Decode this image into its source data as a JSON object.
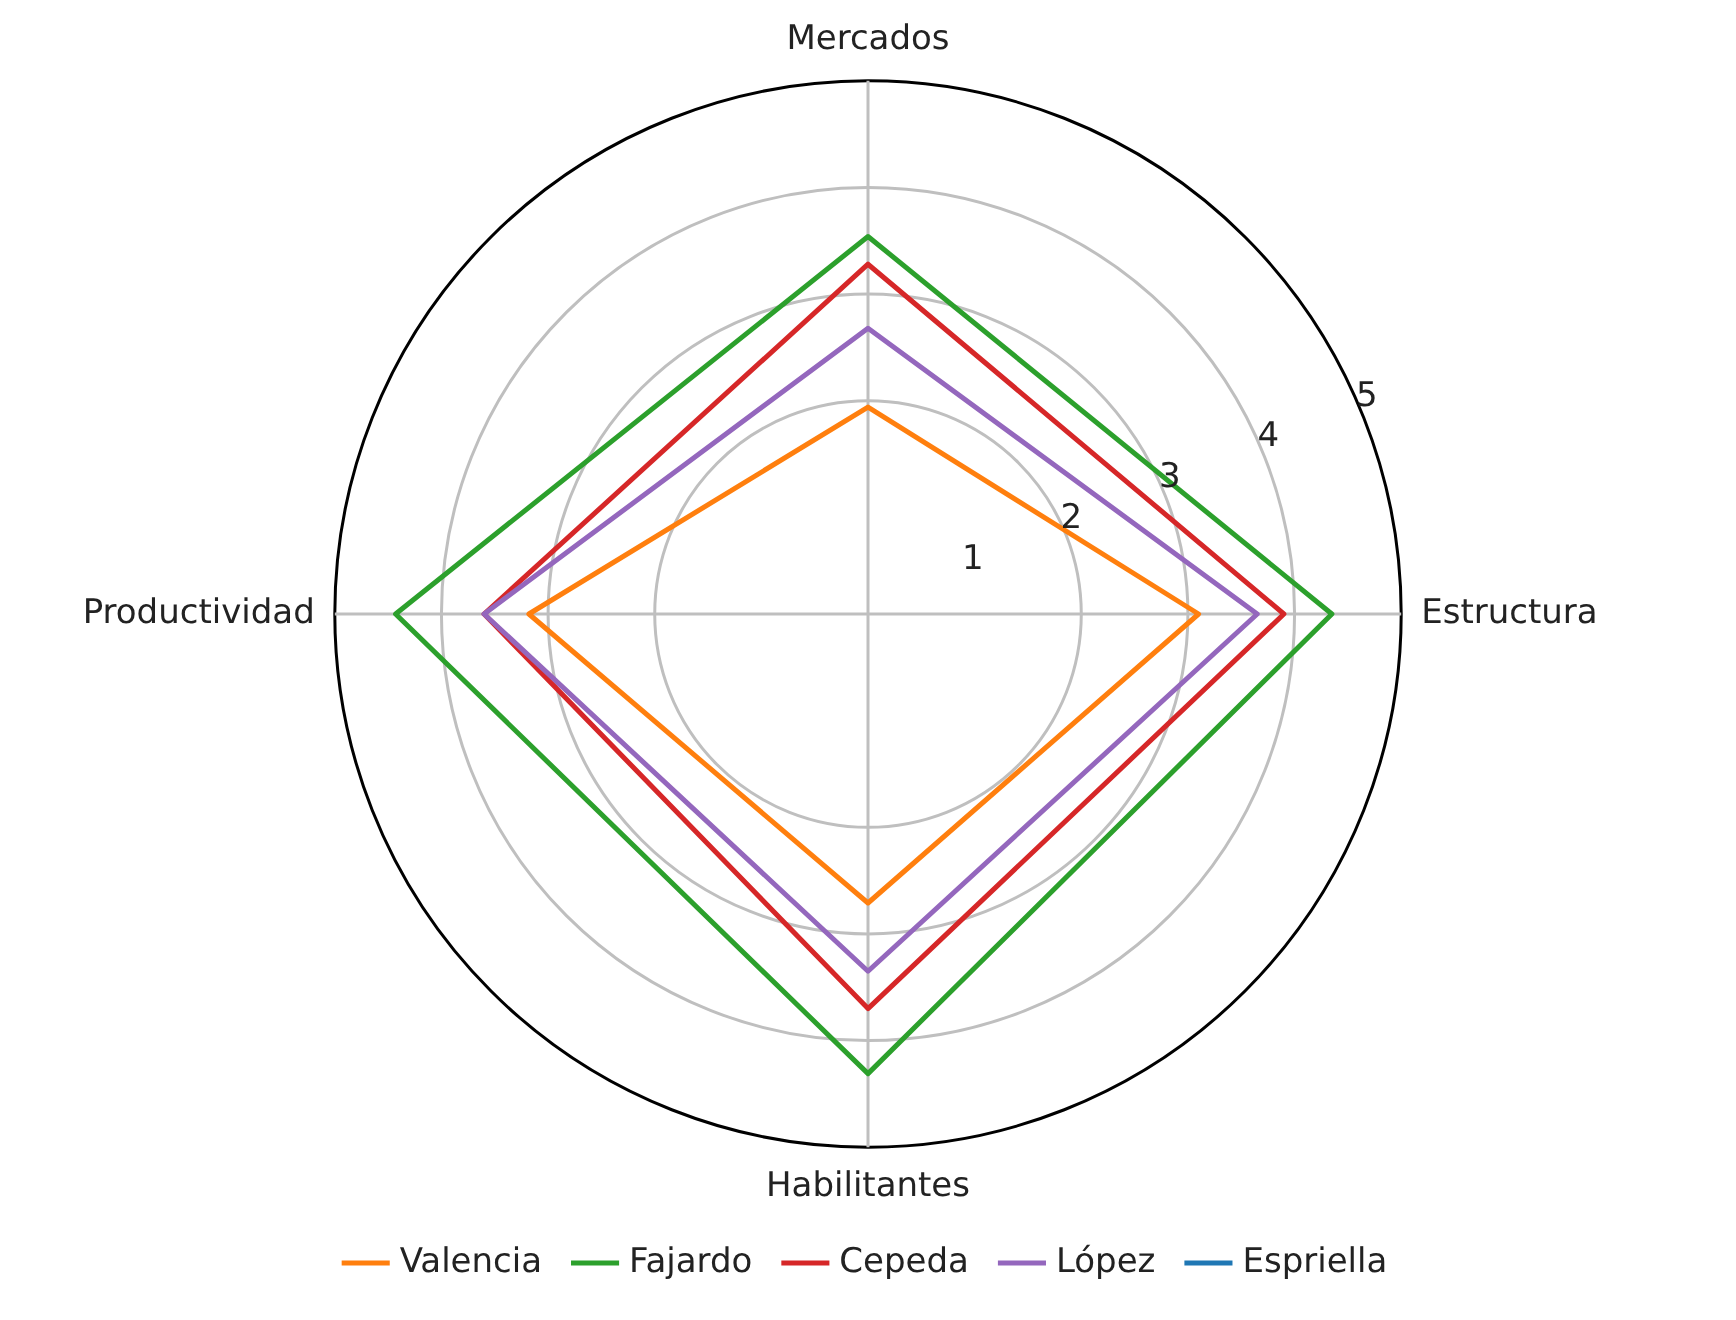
{
  "chart_data": {
    "type": "radar",
    "categories": [
      "Mercados",
      "Estructura",
      "Habilitantes",
      "Productividad"
    ],
    "series": [
      {
        "name": "Valencia",
        "color": "#ff7f0e",
        "values": [
          1.94,
          3.1,
          2.71,
          3.18
        ]
      },
      {
        "name": "Fajardo",
        "color": "#2ca02c",
        "values": [
          3.54,
          4.35,
          4.31,
          4.43
        ]
      },
      {
        "name": "Cepeda",
        "color": "#d62728",
        "values": [
          3.28,
          3.9,
          3.7,
          3.6
        ]
      },
      {
        "name": "López",
        "color": "#9467bd",
        "values": [
          2.68,
          3.65,
          3.35,
          3.6
        ]
      },
      {
        "name": "Espriella",
        "color": "#1f77b4",
        "values": [
          null,
          null,
          null,
          null
        ]
      }
    ],
    "ylim": [
      0,
      5
    ],
    "yticks": [
      1,
      2,
      3,
      4,
      5
    ],
    "grid": true,
    "legend": "bottom",
    "marker": "none",
    "line_style": "solid"
  }
}
